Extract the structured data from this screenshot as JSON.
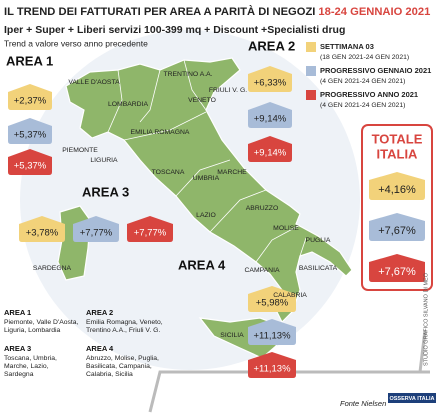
{
  "header": {
    "title": "IL TREND DEI FATTURATI PER AREA A PARITÀ DI NEGOZI",
    "title_date": "18-24 GENNAIO 2021",
    "subtitle": "Iper + Super + Liberi servizi 100-399 mq + Discount +Specialisti drug",
    "note": "Trend a valore verso anno precedente"
  },
  "legend": [
    {
      "label": "SETTIMANA 03",
      "period": "(18 GEN 2021-24 GEN 2021)",
      "color": "#f2d27a"
    },
    {
      "label": "PROGRESSIVO GENNAIO 2021",
      "period": "(4 GEN 2021-24 GEN 2021)",
      "color": "#a8bcd8"
    },
    {
      "label": "PROGRESSIVO ANNO 2021",
      "period": "(4 GEN 2021-24 GEN 2021)",
      "color": "#d8453f"
    }
  ],
  "areas": [
    {
      "name": "AREA 1",
      "values": [
        "+2,37%",
        "+5,37%",
        "+5,37%"
      ]
    },
    {
      "name": "AREA 2",
      "values": [
        "+6,33%",
        "+9,14%",
        "+9,14%"
      ]
    },
    {
      "name": "AREA 3",
      "values": [
        "+3,78%",
        "+7,77%",
        "+7,77%"
      ]
    },
    {
      "name": "AREA 4",
      "values": [
        "+5,98%",
        "+11,13%",
        "+11,13%"
      ]
    }
  ],
  "total": {
    "title": [
      "TOTALE",
      "ITALIA"
    ],
    "values": [
      "+4,16%",
      "+7,67%",
      "+7,67%"
    ]
  },
  "regions": [
    "VALLE D'AOSTA",
    "PIEMONTE",
    "LOMBARDIA",
    "LIGURIA",
    "TRENTINO A.A.",
    "VENETO",
    "FRIULI V. G.",
    "EMILIA ROMAGNA",
    "TOSCANA",
    "MARCHE",
    "UMBRIA",
    "LAZIO",
    "ABRUZZO",
    "MOLISE",
    "SARDEGNA",
    "CAMPANIA",
    "PUGLIA",
    "BASILICATA",
    "CALABRIA",
    "SICILIA"
  ],
  "area_key": [
    {
      "name": "AREA 1",
      "lines": [
        "Piemonte, Valle D'Aosta,",
        "Liguria, Lombardia"
      ]
    },
    {
      "name": "AREA 2",
      "lines": [
        "Emilia Romagna, Veneto,",
        "Trentino A.A., Friuli V. G."
      ]
    },
    {
      "name": "AREA 3",
      "lines": [
        "Toscana, Umbria,",
        "Marche, Lazio,",
        "Sardegna"
      ]
    },
    {
      "name": "AREA 4",
      "lines": [
        "Abruzzo, Molise, Puglia,",
        "Basilicata, Campania,",
        "Calabria, Sicilia"
      ]
    }
  ],
  "source": "Fonte Nielsen",
  "credit": "STUDIO GRAFICO SILVANO DI MEO",
  "logo": "OSSERVA ITALIA"
}
